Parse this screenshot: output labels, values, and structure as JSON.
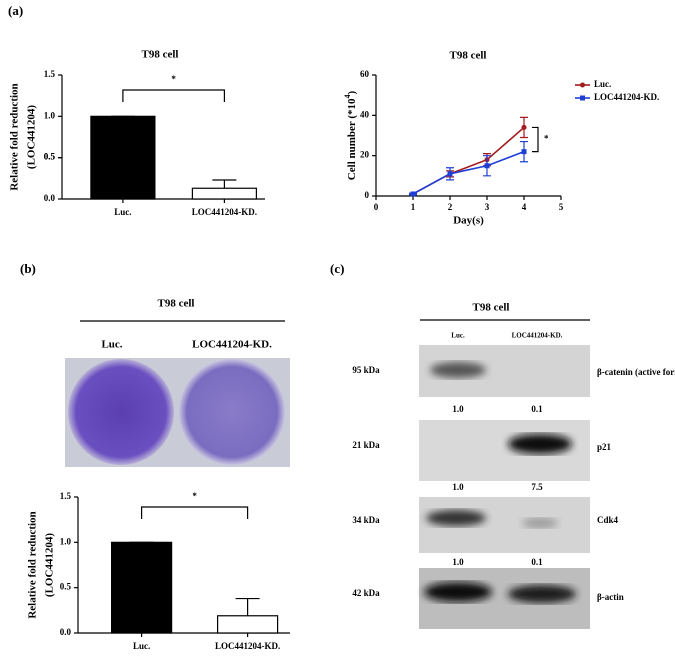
{
  "panel_labels": [
    "(a)",
    "(b)",
    "(c)"
  ],
  "chart_data": [
    {
      "type": "bar",
      "title": "T98 cell",
      "ylabel": [
        "Relative fold reduction",
        "(LOC441204)"
      ],
      "categories": [
        "Luc.",
        "LOC441204-KD."
      ],
      "values": [
        1.0,
        0.13
      ],
      "errors": [
        0,
        0.1
      ],
      "color": "#000000",
      "ylim": [
        0,
        1.5
      ],
      "yticks": [
        {
          "value": 0,
          "label": "0.0"
        },
        0.5,
        {
          "value": 1,
          "label": "1.0"
        },
        0.5,
        {
          "value": 1.5,
          "label": "1.5"
        }
      ],
      "annotation": "*"
    },
    {
      "type": "line",
      "title": "T98 cell",
      "ylabel": [
        "Cell number (*10",
        "4",
        ")"
      ],
      "xlabel": "Day(s)",
      "x": [
        1,
        2,
        3,
        4
      ],
      "series": [
        {
          "name": "Luc.",
          "color": "#a3191c",
          "values": [
            1,
            11,
            18,
            34
          ],
          "errors": [
            0.3,
            1.5,
            3,
            5
          ]
        },
        {
          "name": "LOC441204-KD.",
          "color": "#1e3fd6",
          "values": [
            1,
            11,
            15,
            22
          ],
          "errors": [
            0.3,
            3,
            5,
            5
          ]
        }
      ],
      "xlim": [
        0,
        5
      ],
      "xticks": [
        0,
        1,
        2,
        3,
        4,
        5
      ],
      "ylim": [
        0,
        60
      ],
      "yticks": [
        0,
        20,
        40,
        60
      ],
      "annotation": "*"
    },
    {
      "type": "bar",
      "ylabel": [
        "Relative fold reduction",
        "(LOC441204)"
      ],
      "categories": [
        "Luc.",
        "LOC441204-KD."
      ],
      "values": [
        1.0,
        0.19
      ],
      "errors": [
        0,
        0.19
      ],
      "color": "#000000",
      "ylim": [
        0,
        1.5
      ],
      "yticks": [
        {
          "value": 0,
          "label": "0.0"
        },
        0.5,
        {
          "value": 1,
          "label": "1.0"
        },
        {
          "value": 1.5,
          "label": "1.5"
        }
      ],
      "annotation": "*"
    }
  ],
  "colony": {
    "title": "T98 cell",
    "labels": [
      "Luc.",
      "LOC441204-KD."
    ]
  },
  "blot": {
    "title": "T98 cell",
    "lanes": [
      "Luc.",
      "LOC441204-KD."
    ],
    "rows": [
      {
        "size": "95 kDa",
        "name": "β-catenin (active form)",
        "quant": [
          "1.0",
          "0.1"
        ]
      },
      {
        "size": "21 kDa",
        "name": "p21",
        "quant": [
          "1.0",
          "7.5"
        ]
      },
      {
        "size": "34 kDa",
        "name": "Cdk4",
        "quant": [
          "1.0",
          "0.1"
        ]
      },
      {
        "size": "42 kDa",
        "name": "β-actin"
      }
    ]
  }
}
